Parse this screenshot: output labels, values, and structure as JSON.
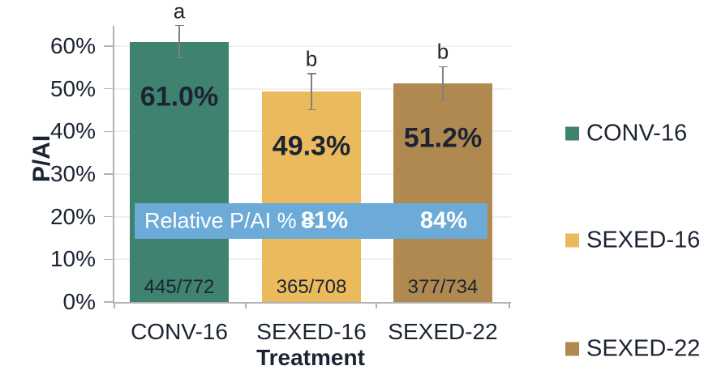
{
  "figure": {
    "background": "#ffffff",
    "text_color": "#1c2433"
  },
  "chart_data": {
    "type": "bar",
    "title": "",
    "xlabel": "Treatment",
    "ylabel": "P/AI",
    "categories": [
      "CONV-16",
      "SEXED-16",
      "SEXED-22"
    ],
    "series": [
      {
        "name": "P/AI",
        "values": [
          61.0,
          49.3,
          51.2
        ],
        "value_labels": [
          "61.0%",
          "49.3%",
          "51.2%"
        ],
        "bar_colors": [
          "#408270",
          "#ebba5c",
          "#b08950"
        ],
        "error_upper_pct": [
          3.8,
          4.2,
          4.0
        ],
        "error_lower_pct": [
          3.8,
          4.2,
          4.0
        ],
        "sig_letters": [
          "a",
          "b",
          "b"
        ],
        "inside_bottom_labels": [
          "445/772",
          "365/708",
          "377/734"
        ]
      }
    ],
    "yticks": [
      0,
      10,
      20,
      30,
      40,
      50,
      60
    ],
    "ytick_labels": [
      "0%",
      "10%",
      "20%",
      "30%",
      "40%",
      "50%",
      "60%"
    ],
    "ylim": [
      0,
      65
    ],
    "grid": "horizontal",
    "legend_position": "right",
    "legend": [
      {
        "label": "CONV-16",
        "color": "#408270"
      },
      {
        "label": "SEXED-16",
        "color": "#ebba5c"
      },
      {
        "label": "SEXED-22",
        "color": "#b08950"
      }
    ],
    "annotation_banner": {
      "label": "Relative P/AI % =",
      "values": [
        "81%",
        "84%"
      ],
      "background": "#6caad8",
      "text_color": "#ffffff"
    }
  }
}
